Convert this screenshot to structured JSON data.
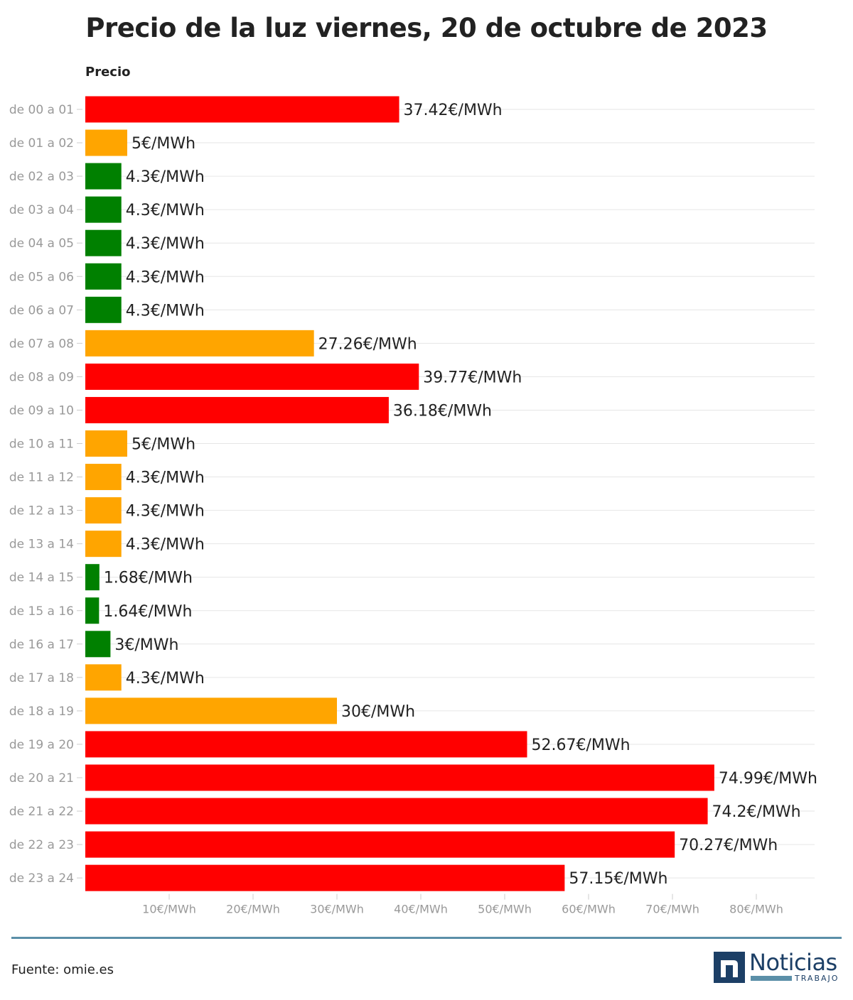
{
  "chart_data": {
    "type": "bar",
    "orientation": "horizontal",
    "title": "Precio de la luz viernes, 20 de octubre de 2023",
    "column_header": "Precio",
    "categories": [
      "de 00 a 01",
      "de 01 a 02",
      "de 02 a 03",
      "de 03 a 04",
      "de 04 a 05",
      "de 05 a 06",
      "de 06 a 07",
      "de 07 a 08",
      "de 08 a 09",
      "de 09 a 10",
      "de 10 a 11",
      "de 11 a 12",
      "de 12 a 13",
      "de 13 a 14",
      "de 14 a 15",
      "de 15 a 16",
      "de 16 a 17",
      "de 17 a 18",
      "de 18 a 19",
      "de 19 a 20",
      "de 20 a 21",
      "de 21 a 22",
      "de 22 a 23",
      "de 23 a 24"
    ],
    "values": [
      37.42,
      5,
      4.3,
      4.3,
      4.3,
      4.3,
      4.3,
      27.26,
      39.77,
      36.18,
      5,
      4.3,
      4.3,
      4.3,
      1.68,
      1.64,
      3,
      4.3,
      30,
      52.67,
      74.99,
      74.2,
      70.27,
      57.15
    ],
    "value_labels": [
      "37.42€/MWh",
      "5€/MWh",
      "4.3€/MWh",
      "4.3€/MWh",
      "4.3€/MWh",
      "4.3€/MWh",
      "4.3€/MWh",
      "27.26€/MWh",
      "39.77€/MWh",
      "36.18€/MWh",
      "5€/MWh",
      "4.3€/MWh",
      "4.3€/MWh",
      "4.3€/MWh",
      "1.68€/MWh",
      "1.64€/MWh",
      "3€/MWh",
      "4.3€/MWh",
      "30€/MWh",
      "52.67€/MWh",
      "74.99€/MWh",
      "74.2€/MWh",
      "70.27€/MWh",
      "57.15€/MWh"
    ],
    "bar_colors": [
      "#ff0000",
      "#ffa500",
      "#008000",
      "#008000",
      "#008000",
      "#008000",
      "#008000",
      "#ffa500",
      "#ff0000",
      "#ff0000",
      "#ffa500",
      "#ffa500",
      "#ffa500",
      "#ffa500",
      "#008000",
      "#008000",
      "#008000",
      "#ffa500",
      "#ffa500",
      "#ff0000",
      "#ff0000",
      "#ff0000",
      "#ff0000",
      "#ff0000"
    ],
    "xlim": [
      0,
      87
    ],
    "xticks": [
      10,
      20,
      30,
      40,
      50,
      60,
      70,
      80
    ],
    "xtick_labels": [
      "10€/MWh",
      "20€/MWh",
      "30€/MWh",
      "40€/MWh",
      "50€/MWh",
      "60€/MWh",
      "70€/MWh",
      "80€/MWh"
    ],
    "grid": true
  },
  "footer": {
    "source": "Fuente: omie.es",
    "logo_word": "Noticias",
    "logo_sub": "TRABAJO"
  },
  "colors": {
    "rule": "#5b8fa8",
    "logo": "#1c3f66"
  }
}
